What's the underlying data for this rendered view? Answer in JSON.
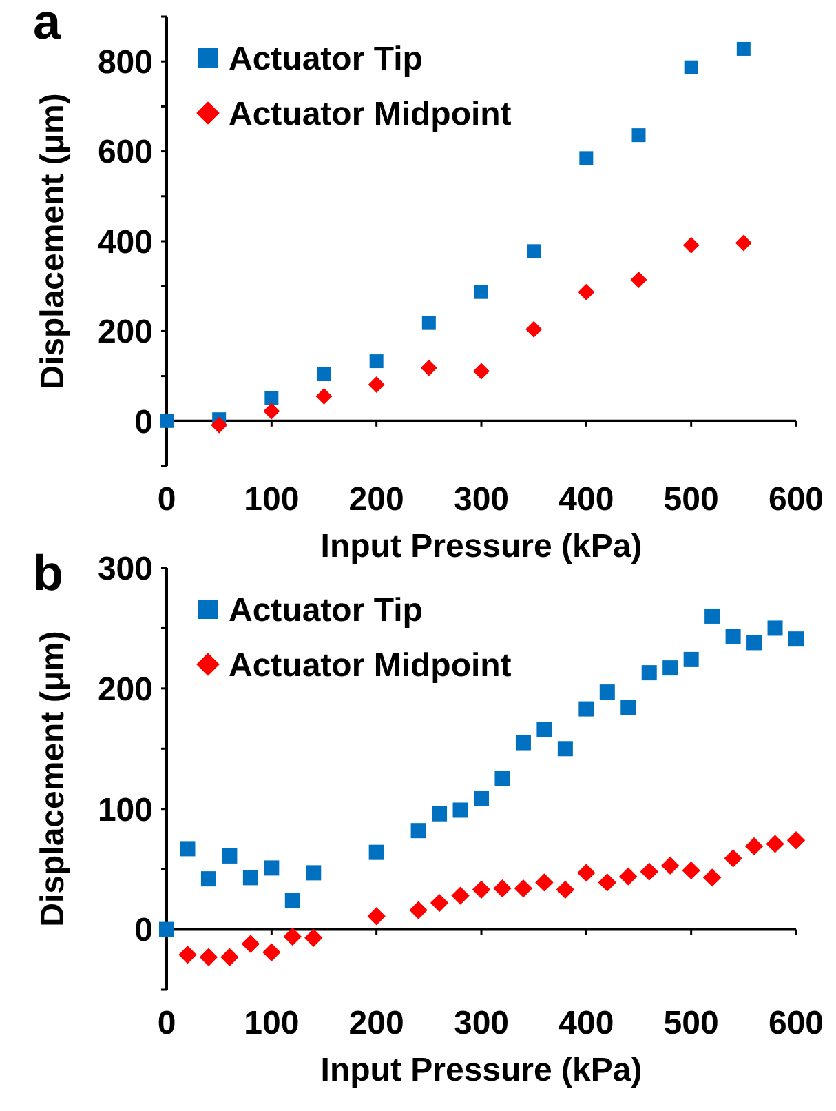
{
  "chart_data": [
    {
      "type": "scatter",
      "title": "a",
      "xlabel": "Input Pressure (kPa)",
      "ylabel": "Displacement (μm)",
      "xlim": [
        0,
        600
      ],
      "xticks": [
        0,
        100,
        200,
        300,
        400,
        500,
        600
      ],
      "ylim": [
        -100,
        900
      ],
      "yticks": [
        {
          "value": -100,
          "label": null
        },
        0,
        {
          "value": 100,
          "label": null
        },
        200,
        {
          "value": 300,
          "label": null
        },
        400,
        {
          "value": 500,
          "label": null
        },
        600,
        {
          "value": 700,
          "label": null
        },
        800,
        {
          "value": 900,
          "label": null
        }
      ],
      "legend": "top left",
      "x": [
        0,
        50,
        100,
        150,
        200,
        250,
        300,
        350,
        400,
        450,
        500,
        550
      ],
      "series": [
        {
          "name": "Actuator Tip",
          "color": "#0070c0",
          "marker": "square",
          "values": [
            0,
            4,
            51,
            104,
            133,
            218,
            287,
            378,
            585,
            636,
            787,
            828
          ]
        },
        {
          "name": "Actuator Midpoint",
          "color": "#ff0000",
          "marker": "diamond",
          "values": [
            null,
            -9,
            22,
            55,
            81,
            118,
            111,
            204,
            287,
            314,
            391,
            396
          ]
        }
      ]
    },
    {
      "type": "scatter",
      "title": "b",
      "xlabel": "Input Pressure (kPa)",
      "ylabel": "Displacement (μm)",
      "xlim": [
        0,
        600
      ],
      "xticks": [
        0,
        100,
        200,
        300,
        400,
        500,
        600
      ],
      "ylim": [
        -50,
        300
      ],
      "yticks": [
        {
          "value": -50,
          "label": null
        },
        0,
        {
          "value": 50,
          "label": null
        },
        100,
        {
          "value": 150,
          "label": null
        },
        200,
        {
          "value": 250,
          "label": null
        },
        300
      ],
      "legend": "top left",
      "x": [
        0,
        20,
        40,
        60,
        80,
        100,
        120,
        140,
        200,
        240,
        260,
        280,
        300,
        320,
        340,
        360,
        380,
        400,
        420,
        440,
        460,
        480,
        500,
        520,
        540,
        560,
        580,
        600
      ],
      "series": [
        {
          "name": "Actuator Tip",
          "color": "#0070c0",
          "marker": "square",
          "values": [
            0,
            67,
            42,
            61,
            43,
            51,
            24,
            47,
            64,
            82,
            96,
            99,
            109,
            125,
            155,
            166,
            150,
            183,
            197,
            184,
            213,
            217,
            224,
            260,
            243,
            238,
            250,
            241
          ]
        },
        {
          "name": "Actuator Midpoint",
          "color": "#ff0000",
          "marker": "diamond",
          "values": [
            null,
            -21,
            -23,
            -23,
            -12,
            -19,
            -6,
            -7,
            11,
            16,
            22,
            28,
            33,
            34,
            34,
            39,
            33,
            47,
            39,
            44,
            48,
            53,
            49,
            43,
            59,
            69,
            71,
            74
          ]
        }
      ]
    }
  ]
}
